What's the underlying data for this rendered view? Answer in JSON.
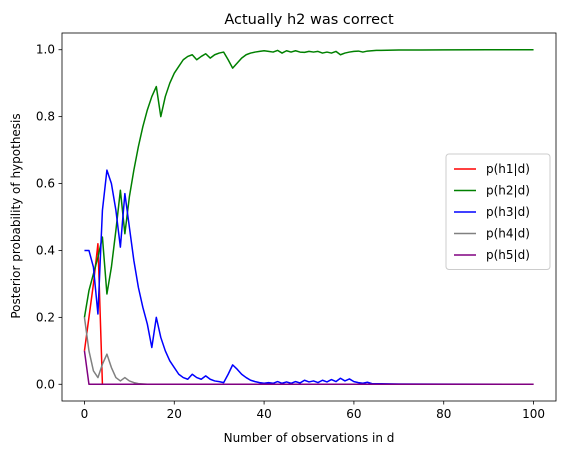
{
  "chart_data": {
    "type": "line",
    "title": "Actually h2 was correct",
    "xlabel": "Number of observations in d",
    "ylabel": "Posterior probability of hypothesis",
    "xlim": [
      -5,
      105
    ],
    "ylim": [
      -0.05,
      1.05
    ],
    "xticks": [
      0,
      20,
      40,
      60,
      80,
      100
    ],
    "yticks": [
      0.0,
      0.2,
      0.4,
      0.6,
      0.8,
      1.0
    ],
    "grid": false,
    "legend_position": "center-right",
    "series": [
      {
        "name": "p(h1|d)",
        "color": "#ff0000",
        "points": [
          [
            0,
            0.1
          ],
          [
            1,
            0.2
          ],
          [
            2,
            0.3
          ],
          [
            3,
            0.42
          ],
          [
            4,
            0.0
          ],
          [
            5,
            0.0
          ],
          [
            10,
            0.0
          ],
          [
            20,
            0.0
          ],
          [
            40,
            0.0
          ],
          [
            60,
            0.0
          ],
          [
            80,
            0.0
          ],
          [
            100,
            0.0
          ]
        ]
      },
      {
        "name": "p(h2|d)",
        "color": "#008000",
        "points": [
          [
            0,
            0.2
          ],
          [
            1,
            0.28
          ],
          [
            2,
            0.33
          ],
          [
            3,
            0.38
          ],
          [
            4,
            0.44
          ],
          [
            5,
            0.27
          ],
          [
            6,
            0.35
          ],
          [
            7,
            0.46
          ],
          [
            8,
            0.58
          ],
          [
            9,
            0.45
          ],
          [
            10,
            0.56
          ],
          [
            11,
            0.64
          ],
          [
            12,
            0.71
          ],
          [
            13,
            0.77
          ],
          [
            14,
            0.82
          ],
          [
            15,
            0.86
          ],
          [
            16,
            0.89
          ],
          [
            17,
            0.8
          ],
          [
            18,
            0.86
          ],
          [
            19,
            0.9
          ],
          [
            20,
            0.93
          ],
          [
            21,
            0.95
          ],
          [
            22,
            0.97
          ],
          [
            23,
            0.98
          ],
          [
            24,
            0.985
          ],
          [
            25,
            0.97
          ],
          [
            26,
            0.98
          ],
          [
            27,
            0.988
          ],
          [
            28,
            0.975
          ],
          [
            29,
            0.985
          ],
          [
            30,
            0.99
          ],
          [
            31,
            0.993
          ],
          [
            32,
            0.97
          ],
          [
            33,
            0.945
          ],
          [
            34,
            0.96
          ],
          [
            35,
            0.975
          ],
          [
            36,
            0.985
          ],
          [
            37,
            0.99
          ],
          [
            38,
            0.993
          ],
          [
            39,
            0.995
          ],
          [
            40,
            0.997
          ],
          [
            41,
            0.995
          ],
          [
            42,
            0.993
          ],
          [
            43,
            0.998
          ],
          [
            44,
            0.99
          ],
          [
            45,
            0.997
          ],
          [
            46,
            0.993
          ],
          [
            47,
            0.997
          ],
          [
            48,
            0.993
          ],
          [
            49,
            0.992
          ],
          [
            50,
            0.995
          ],
          [
            51,
            0.993
          ],
          [
            52,
            0.995
          ],
          [
            53,
            0.99
          ],
          [
            54,
            0.993
          ],
          [
            55,
            0.99
          ],
          [
            56,
            0.995
          ],
          [
            57,
            0.985
          ],
          [
            58,
            0.99
          ],
          [
            59,
            0.993
          ],
          [
            60,
            0.995
          ],
          [
            61,
            0.996
          ],
          [
            62,
            0.993
          ],
          [
            63,
            0.996
          ],
          [
            65,
            0.998
          ],
          [
            70,
            0.999
          ],
          [
            75,
            0.999
          ],
          [
            80,
            0.9995
          ],
          [
            90,
            1.0
          ],
          [
            100,
            1.0
          ]
        ]
      },
      {
        "name": "p(h3|d)",
        "color": "#0000ff",
        "points": [
          [
            0,
            0.4
          ],
          [
            1,
            0.4
          ],
          [
            2,
            0.35
          ],
          [
            3,
            0.21
          ],
          [
            4,
            0.52
          ],
          [
            5,
            0.64
          ],
          [
            6,
            0.6
          ],
          [
            7,
            0.52
          ],
          [
            8,
            0.41
          ],
          [
            9,
            0.57
          ],
          [
            10,
            0.47
          ],
          [
            11,
            0.37
          ],
          [
            12,
            0.29
          ],
          [
            13,
            0.23
          ],
          [
            14,
            0.18
          ],
          [
            15,
            0.11
          ],
          [
            16,
            0.2
          ],
          [
            17,
            0.14
          ],
          [
            18,
            0.1
          ],
          [
            19,
            0.07
          ],
          [
            20,
            0.05
          ],
          [
            21,
            0.03
          ],
          [
            22,
            0.02
          ],
          [
            23,
            0.015
          ],
          [
            24,
            0.03
          ],
          [
            25,
            0.02
          ],
          [
            26,
            0.015
          ],
          [
            27,
            0.025
          ],
          [
            28,
            0.015
          ],
          [
            29,
            0.01
          ],
          [
            30,
            0.008
          ],
          [
            31,
            0.005
          ],
          [
            32,
            0.03
          ],
          [
            33,
            0.058
          ],
          [
            34,
            0.045
          ],
          [
            35,
            0.03
          ],
          [
            36,
            0.02
          ],
          [
            37,
            0.012
          ],
          [
            38,
            0.008
          ],
          [
            39,
            0.005
          ],
          [
            40,
            0.003
          ],
          [
            41,
            0.005
          ],
          [
            42,
            0.003
          ],
          [
            43,
            0.008
          ],
          [
            44,
            0.003
          ],
          [
            45,
            0.007
          ],
          [
            46,
            0.003
          ],
          [
            47,
            0.008
          ],
          [
            48,
            0.004
          ],
          [
            49,
            0.012
          ],
          [
            50,
            0.007
          ],
          [
            51,
            0.01
          ],
          [
            52,
            0.005
          ],
          [
            53,
            0.012
          ],
          [
            54,
            0.007
          ],
          [
            55,
            0.014
          ],
          [
            56,
            0.008
          ],
          [
            57,
            0.018
          ],
          [
            58,
            0.01
          ],
          [
            59,
            0.016
          ],
          [
            60,
            0.008
          ],
          [
            61,
            0.005
          ],
          [
            62,
            0.003
          ],
          [
            63,
            0.006
          ],
          [
            64,
            0.002
          ],
          [
            70,
            0.001
          ],
          [
            80,
            0.0005
          ],
          [
            100,
            0.0
          ]
        ]
      },
      {
        "name": "p(h4|d)",
        "color": "#808080",
        "points": [
          [
            0,
            0.2
          ],
          [
            1,
            0.1
          ],
          [
            2,
            0.04
          ],
          [
            3,
            0.02
          ],
          [
            4,
            0.06
          ],
          [
            5,
            0.09
          ],
          [
            6,
            0.05
          ],
          [
            7,
            0.02
          ],
          [
            8,
            0.01
          ],
          [
            9,
            0.02
          ],
          [
            10,
            0.01
          ],
          [
            11,
            0.005
          ],
          [
            12,
            0.002
          ],
          [
            14,
            0.0
          ],
          [
            20,
            0.0
          ],
          [
            40,
            0.0
          ],
          [
            60,
            0.0
          ],
          [
            80,
            0.0
          ],
          [
            100,
            0.0
          ]
        ]
      },
      {
        "name": "p(h5|d)",
        "color": "#800080",
        "points": [
          [
            0,
            0.1
          ],
          [
            1,
            0.0
          ],
          [
            5,
            0.0
          ],
          [
            10,
            0.0
          ],
          [
            20,
            0.0
          ],
          [
            40,
            0.0
          ],
          [
            60,
            0.0
          ],
          [
            80,
            0.0
          ],
          [
            100,
            0.0
          ]
        ]
      }
    ]
  }
}
